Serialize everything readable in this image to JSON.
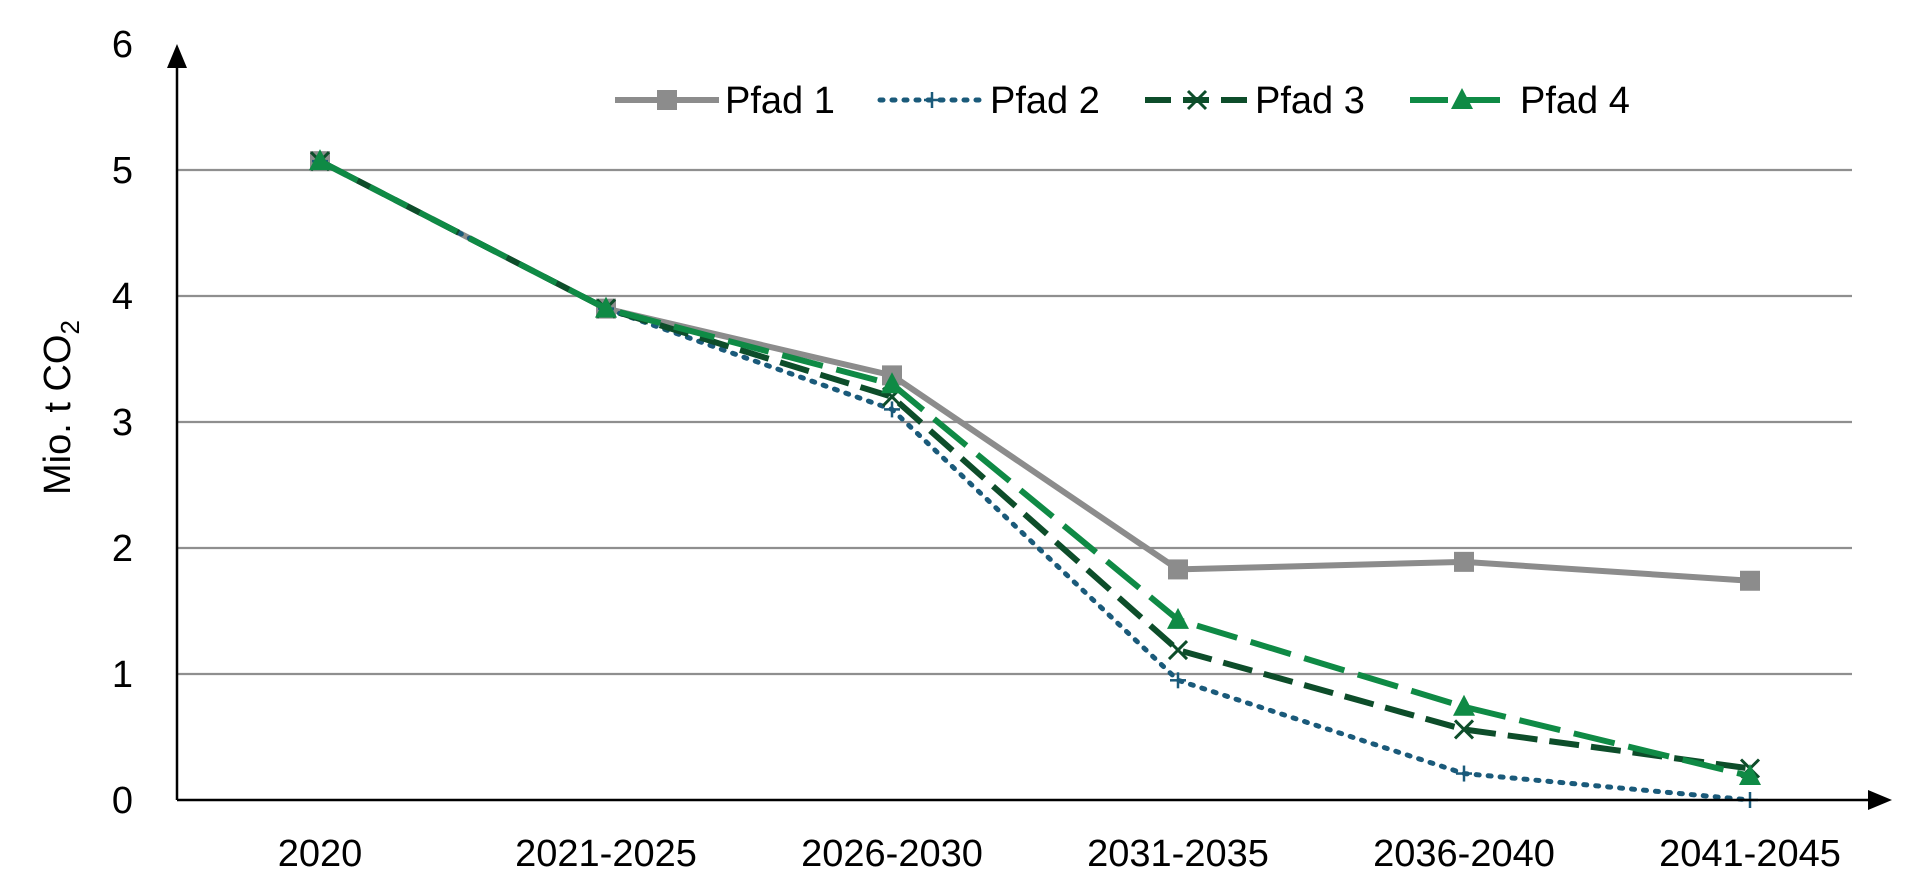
{
  "chart_data": {
    "type": "line",
    "categories": [
      "2020",
      "2021-2025",
      "2026-2030",
      "2031-2035",
      "2036-2040",
      "2041-2045"
    ],
    "ylabel": "Mio. t CO",
    "ylabel_subscript": "2",
    "ylim": [
      0,
      6
    ],
    "yticks": [
      "0",
      "1",
      "2",
      "3",
      "4",
      "5",
      "6"
    ],
    "grid": true,
    "legend_position": "top",
    "series": [
      {
        "name": "Pfad 1",
        "values": [
          5.07,
          3.9,
          3.37,
          1.83,
          1.89,
          1.74
        ],
        "color": "#8c8c8c",
        "style": "solid",
        "marker": "square"
      },
      {
        "name": "Pfad 2",
        "values": [
          5.07,
          3.9,
          3.1,
          0.95,
          0.21,
          0.0
        ],
        "color": "#1a5a7a",
        "style": "dotted",
        "marker": "plus"
      },
      {
        "name": "Pfad 3",
        "values": [
          5.07,
          3.9,
          3.2,
          1.19,
          0.56,
          0.25
        ],
        "color": "#0d4d2a",
        "style": "dashed",
        "marker": "x"
      },
      {
        "name": "Pfad 4",
        "values": [
          5.07,
          3.9,
          3.3,
          1.43,
          0.74,
          0.19
        ],
        "color": "#0f8a45",
        "style": "longdash",
        "marker": "triangle"
      }
    ]
  }
}
